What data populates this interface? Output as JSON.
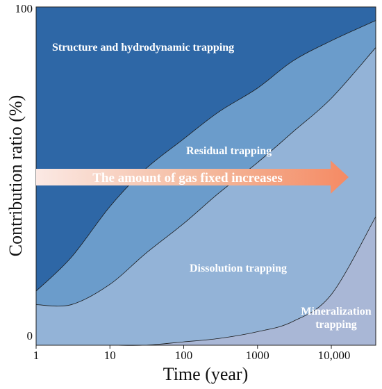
{
  "chart_data": {
    "type": "area",
    "title": "",
    "xlabel": "Time (year)",
    "ylabel": "Contribution ratio (%)",
    "x_scale": "log",
    "xlim": [
      1,
      40000
    ],
    "ylim": [
      0,
      100
    ],
    "x_tick_labels": [
      "1",
      "10",
      "100",
      "1000",
      "10,000"
    ],
    "y_tick_labels": [
      "0",
      "100"
    ],
    "x": [
      1,
      3,
      10,
      30,
      100,
      300,
      1000,
      3000,
      10000,
      40000
    ],
    "series": [
      {
        "name": "Structure and hydrodynamic trapping",
        "values": [
          84,
          74,
          59,
          48,
          39,
          31,
          24,
          16,
          10,
          4
        ]
      },
      {
        "name": "Residual trapping",
        "values": [
          4,
          14,
          23,
          25,
          25,
          24,
          22,
          21,
          17,
          8
        ]
      },
      {
        "name": "Dissolution trapping",
        "values": [
          12,
          12,
          18,
          27,
          35,
          43,
          50,
          56,
          58,
          50
        ]
      },
      {
        "name": "Mineralization trapping",
        "values": [
          0,
          0,
          0,
          0,
          1,
          2,
          4,
          7,
          15,
          38
        ]
      }
    ],
    "colors": [
      "#2e67a6",
      "#6b9ccb",
      "#93b3d7",
      "#a9b7d6"
    ],
    "annotation": "The amount of gas fixed increases",
    "region_labels": [
      "Structure and hydrodynamic trapping",
      "Residual trapping",
      "Dissolution trapping",
      "Mineralization trapping"
    ]
  }
}
